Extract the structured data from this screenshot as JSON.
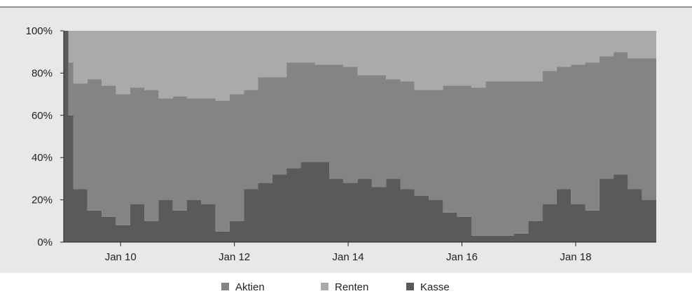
{
  "chart_data": {
    "type": "area",
    "stacked": true,
    "percent": true,
    "ylim": [
      0,
      100
    ],
    "y_ticks": [
      "0%",
      "20%",
      "40%",
      "60%",
      "80%",
      "100%"
    ],
    "x_ticks": [
      "Jan 10",
      "Jan 12",
      "Jan 14",
      "Jan 16",
      "Jan 18"
    ],
    "x_range": [
      "2009-01",
      "2019-06"
    ],
    "grid": false,
    "legend_position": "bottom-center",
    "x": [
      "2009-01",
      "2009-02",
      "2009-03",
      "2009-06",
      "2009-09",
      "2009-12",
      "2010-03",
      "2010-06",
      "2010-09",
      "2010-12",
      "2011-03",
      "2011-06",
      "2011-09",
      "2011-12",
      "2012-03",
      "2012-06",
      "2012-09",
      "2012-12",
      "2013-03",
      "2013-06",
      "2013-09",
      "2013-12",
      "2014-03",
      "2014-06",
      "2014-09",
      "2014-12",
      "2015-03",
      "2015-06",
      "2015-09",
      "2015-12",
      "2016-03",
      "2016-06",
      "2016-09",
      "2016-12",
      "2017-03",
      "2017-06",
      "2017-09",
      "2017-12",
      "2018-03",
      "2018-06",
      "2018-09",
      "2018-12",
      "2019-03",
      "2019-06"
    ],
    "series": [
      {
        "name": "Kasse",
        "color": "#5a5a5a",
        "values": [
          100,
          60,
          25,
          15,
          12,
          8,
          18,
          10,
          20,
          15,
          20,
          18,
          5,
          10,
          25,
          28,
          32,
          35,
          38,
          38,
          30,
          28,
          30,
          26,
          30,
          25,
          22,
          20,
          14,
          12,
          3,
          3,
          3,
          4,
          10,
          18,
          25,
          18,
          15,
          30,
          32,
          25,
          20,
          30
        ]
      },
      {
        "name": "Aktien",
        "color": "#848484",
        "values": [
          0,
          25,
          50,
          62,
          62,
          62,
          55,
          62,
          48,
          54,
          48,
          50,
          62,
          60,
          47,
          50,
          46,
          50,
          47,
          46,
          54,
          55,
          49,
          53,
          47,
          51,
          50,
          52,
          60,
          62,
          70,
          73,
          73,
          72,
          66,
          63,
          58,
          66,
          70,
          58,
          58,
          62,
          67,
          58
        ]
      },
      {
        "name": "Renten",
        "color": "#aaaaaa",
        "values": [
          0,
          15,
          25,
          23,
          26,
          30,
          27,
          28,
          32,
          31,
          32,
          32,
          33,
          30,
          28,
          22,
          22,
          15,
          15,
          16,
          16,
          17,
          21,
          21,
          23,
          24,
          28,
          28,
          26,
          26,
          27,
          24,
          24,
          24,
          24,
          19,
          17,
          16,
          15,
          12,
          10,
          13,
          13,
          12
        ]
      }
    ]
  }
}
